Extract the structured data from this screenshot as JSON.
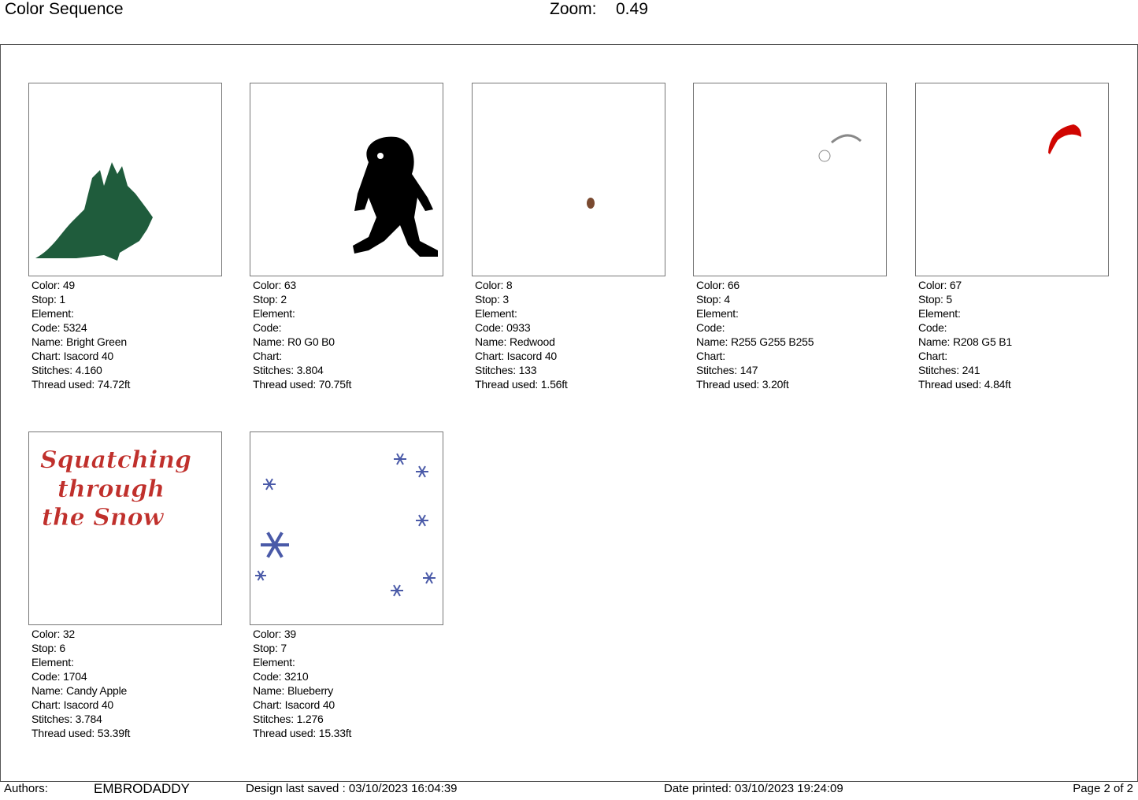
{
  "header": {
    "title": "Color Sequence",
    "zoom_label": "Zoom:",
    "zoom_value": "0.49"
  },
  "labels": {
    "color": "Color: ",
    "stop": "Stop: ",
    "element": "Element:",
    "code": "Code: ",
    "name": "Name: ",
    "chart": "Chart: ",
    "stitches": "Stitches: ",
    "thread": "Thread used: "
  },
  "items": [
    {
      "color": "49",
      "stop": "1",
      "element": "",
      "code": "5324",
      "name": "Bright Green",
      "chart": "Isacord 40",
      "stitches": "4.160",
      "thread": "74.72ft",
      "swatch": "#1f5c3c",
      "art": "tree"
    },
    {
      "color": "63",
      "stop": "2",
      "element": "",
      "code": "",
      "name": "R0 G0 B0",
      "chart": "",
      "stitches": "3.804",
      "thread": "70.75ft",
      "swatch": "#000000",
      "art": "sasquatch"
    },
    {
      "color": "8",
      "stop": "3",
      "element": "",
      "code": "0933",
      "name": "Redwood",
      "chart": "Isacord 40",
      "stitches": "133",
      "thread": "1.56ft",
      "swatch": "#7a4a30",
      "art": "nose"
    },
    {
      "color": "66",
      "stop": "4",
      "element": "",
      "code": "",
      "name": "R255 G255 B255",
      "chart": "",
      "stitches": "147",
      "thread": "3.20ft",
      "swatch": "#ffffff",
      "art": "hat-trim"
    },
    {
      "color": "67",
      "stop": "5",
      "element": "",
      "code": "",
      "name": "R208 G5 B1",
      "chart": "",
      "stitches": "241",
      "thread": "4.84ft",
      "swatch": "#d00501",
      "art": "hat"
    },
    {
      "color": "32",
      "stop": "6",
      "element": "",
      "code": "1704",
      "name": "Candy Apple",
      "chart": "Isacord 40",
      "stitches": "3.784",
      "thread": "53.39ft",
      "swatch": "#c0302c",
      "art": "lettering",
      "art_text": [
        "Squatching",
        "through",
        "the Snow"
      ]
    },
    {
      "color": "39",
      "stop": "7",
      "element": "",
      "code": "3210",
      "name": "Blueberry",
      "chart": "Isacord 40",
      "stitches": "1.276",
      "thread": "15.33ft",
      "swatch": "#4a5aa8",
      "art": "snowflakes"
    }
  ],
  "footer": {
    "authors_label": "Authors:",
    "author": "EMBRODADDY",
    "saved": "Design last saved : 03/10/2023 16:04:39",
    "printed": "Date printed: 03/10/2023 19:24:09",
    "page": "Page 2 of 2"
  }
}
